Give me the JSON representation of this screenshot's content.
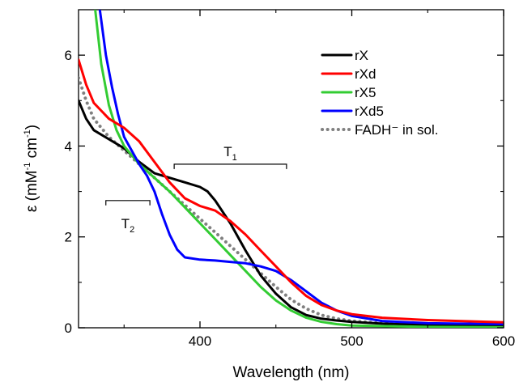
{
  "chart_data": {
    "type": "line",
    "xlabel": "Wavelength (nm)",
    "ylabel": {
      "symbol": "ε",
      "open": " (mM",
      "exp1": "-1",
      "mid": " cm",
      "exp2": "-1",
      "close": ")"
    },
    "xlim": [
      320,
      600
    ],
    "ylim": [
      0,
      7
    ],
    "xticks": [
      400,
      500,
      600
    ],
    "yticks": [
      0,
      2,
      4,
      6
    ],
    "legend_position": "top-right",
    "grid": false,
    "series": [
      {
        "name": "rX",
        "color": "#000000",
        "style": "solid",
        "points": [
          [
            320,
            5.0
          ],
          [
            325,
            4.6
          ],
          [
            330,
            4.35
          ],
          [
            340,
            4.15
          ],
          [
            350,
            3.95
          ],
          [
            360,
            3.65
          ],
          [
            370,
            3.4
          ],
          [
            380,
            3.3
          ],
          [
            390,
            3.2
          ],
          [
            400,
            3.1
          ],
          [
            405,
            3.0
          ],
          [
            410,
            2.8
          ],
          [
            420,
            2.3
          ],
          [
            430,
            1.7
          ],
          [
            440,
            1.15
          ],
          [
            450,
            0.75
          ],
          [
            460,
            0.45
          ],
          [
            470,
            0.28
          ],
          [
            480,
            0.2
          ],
          [
            490,
            0.16
          ],
          [
            500,
            0.13
          ],
          [
            520,
            0.09
          ],
          [
            550,
            0.06
          ],
          [
            600,
            0.04
          ]
        ]
      },
      {
        "name": "rXd",
        "color": "#ff0000",
        "style": "solid",
        "points": [
          [
            320,
            5.9
          ],
          [
            325,
            5.35
          ],
          [
            330,
            4.95
          ],
          [
            340,
            4.6
          ],
          [
            350,
            4.4
          ],
          [
            360,
            4.1
          ],
          [
            370,
            3.65
          ],
          [
            380,
            3.2
          ],
          [
            390,
            2.85
          ],
          [
            400,
            2.68
          ],
          [
            410,
            2.58
          ],
          [
            420,
            2.35
          ],
          [
            430,
            2.05
          ],
          [
            440,
            1.7
          ],
          [
            450,
            1.35
          ],
          [
            460,
            1.0
          ],
          [
            470,
            0.7
          ],
          [
            480,
            0.5
          ],
          [
            490,
            0.38
          ],
          [
            500,
            0.3
          ],
          [
            520,
            0.22
          ],
          [
            550,
            0.17
          ],
          [
            600,
            0.12
          ]
        ]
      },
      {
        "name": "rX5",
        "color": "#33cc33",
        "style": "solid",
        "points": [
          [
            331,
            7.0
          ],
          [
            335,
            5.8
          ],
          [
            340,
            4.9
          ],
          [
            345,
            4.35
          ],
          [
            350,
            4.0
          ],
          [
            360,
            3.6
          ],
          [
            370,
            3.3
          ],
          [
            380,
            3.0
          ],
          [
            390,
            2.65
          ],
          [
            400,
            2.3
          ],
          [
            410,
            1.95
          ],
          [
            420,
            1.6
          ],
          [
            430,
            1.25
          ],
          [
            440,
            0.9
          ],
          [
            450,
            0.6
          ],
          [
            460,
            0.38
          ],
          [
            470,
            0.22
          ],
          [
            480,
            0.13
          ],
          [
            490,
            0.08
          ],
          [
            500,
            0.05
          ],
          [
            550,
            0.02
          ],
          [
            600,
            0.01
          ]
        ]
      },
      {
        "name": "rXd5",
        "color": "#0000ff",
        "style": "solid",
        "points": [
          [
            334,
            7.0
          ],
          [
            338,
            6.0
          ],
          [
            342,
            5.3
          ],
          [
            346,
            4.7
          ],
          [
            350,
            4.2
          ],
          [
            355,
            3.9
          ],
          [
            360,
            3.6
          ],
          [
            365,
            3.35
          ],
          [
            370,
            3.0
          ],
          [
            375,
            2.5
          ],
          [
            380,
            2.05
          ],
          [
            385,
            1.72
          ],
          [
            390,
            1.55
          ],
          [
            400,
            1.5
          ],
          [
            410,
            1.48
          ],
          [
            420,
            1.45
          ],
          [
            430,
            1.42
          ],
          [
            440,
            1.35
          ],
          [
            450,
            1.25
          ],
          [
            460,
            1.05
          ],
          [
            470,
            0.8
          ],
          [
            480,
            0.55
          ],
          [
            490,
            0.38
          ],
          [
            500,
            0.26
          ],
          [
            520,
            0.15
          ],
          [
            550,
            0.1
          ],
          [
            600,
            0.08
          ]
        ]
      },
      {
        "name": "FADH⁻ in sol.",
        "color": "#808080",
        "style": "dotted",
        "points": [
          [
            320,
            5.5
          ],
          [
            325,
            5.0
          ],
          [
            330,
            4.6
          ],
          [
            340,
            4.2
          ],
          [
            350,
            3.9
          ],
          [
            360,
            3.6
          ],
          [
            370,
            3.3
          ],
          [
            380,
            3.0
          ],
          [
            390,
            2.7
          ],
          [
            400,
            2.4
          ],
          [
            410,
            2.1
          ],
          [
            420,
            1.8
          ],
          [
            430,
            1.5
          ],
          [
            440,
            1.2
          ],
          [
            450,
            0.9
          ],
          [
            460,
            0.62
          ],
          [
            470,
            0.42
          ],
          [
            480,
            0.28
          ],
          [
            490,
            0.2
          ],
          [
            500,
            0.15
          ],
          [
            520,
            0.1
          ],
          [
            550,
            0.07
          ],
          [
            600,
            0.05
          ]
        ]
      }
    ],
    "annotations": [
      {
        "label": "T",
        "sub": "1",
        "x_range": [
          383,
          457
        ],
        "y": 3.6
      },
      {
        "label": "T",
        "sub": "2",
        "x_range": [
          338,
          367
        ],
        "y": 2.8
      }
    ]
  }
}
